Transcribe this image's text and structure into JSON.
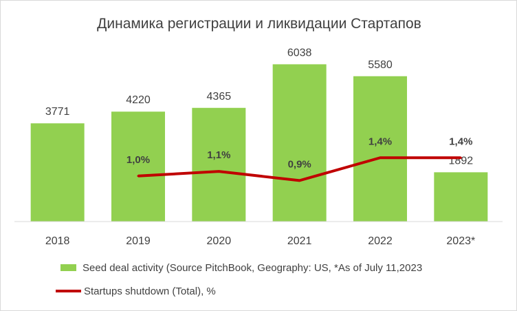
{
  "chart_data": {
    "type": "bar",
    "title": "Динамика регистрации и ликвидации Стартапов",
    "categories": [
      "2018",
      "2019",
      "2020",
      "2021",
      "2022",
      "2023*"
    ],
    "series": [
      {
        "name": "Seed deal activity (Source PitchBook, Geography: US, *As of July 11,2023",
        "type": "bar",
        "values": [
          3771,
          4220,
          4365,
          6038,
          5580,
          1892
        ],
        "value_labels": [
          "3771",
          "4220",
          "4365",
          "6038",
          "5580",
          "1892"
        ],
        "color": "#92d050"
      },
      {
        "name": "Startups shutdown (Total), %",
        "type": "line",
        "values": [
          null,
          1.0,
          1.1,
          0.9,
          1.4,
          1.4
        ],
        "value_labels": [
          null,
          "1,0%",
          "1,1%",
          "0,9%",
          "1,4%",
          "1,4%"
        ],
        "color": "#c00000"
      }
    ],
    "ylim": [
      0,
      7000
    ],
    "y2lim": [
      0,
      4
    ],
    "grid": false,
    "legend": "bottom"
  }
}
